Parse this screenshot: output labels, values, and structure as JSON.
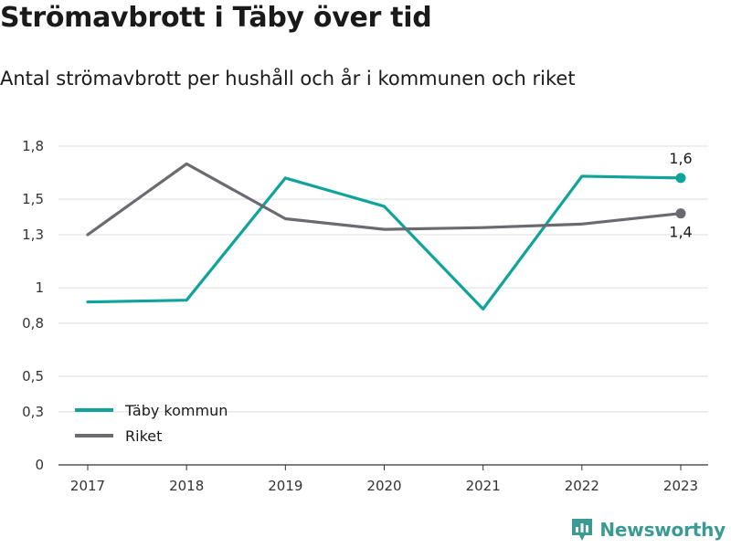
{
  "title": "Strömavbrott i Täby över tid",
  "subtitle": "Antal strömavbrott per hushåll och år i kommunen och riket",
  "brand": {
    "name": "Newsworthy",
    "icon": "newsworthy-logo-icon",
    "color": "#3a9a94"
  },
  "chart_data": {
    "type": "line",
    "title": "Strömavbrott i Täby över tid",
    "subtitle": "Antal strömavbrott per hushåll och år i kommunen och riket",
    "xlabel": "",
    "ylabel": "",
    "x": [
      "2017",
      "2018",
      "2019",
      "2020",
      "2021",
      "2022",
      "2023"
    ],
    "series": [
      {
        "name": "Täby kommun",
        "color": "#0fa39b",
        "values": [
          0.92,
          0.93,
          1.62,
          1.46,
          0.88,
          1.63,
          1.62
        ],
        "end_label": "1,6"
      },
      {
        "name": "Riket",
        "color": "#6b6a70",
        "values": [
          1.3,
          1.7,
          1.39,
          1.33,
          1.34,
          1.36,
          1.42
        ],
        "end_label": "1,4"
      }
    ],
    "ylim": [
      0,
      1.8
    ],
    "yticks": [
      {
        "value": 0,
        "label": "0"
      },
      {
        "value": 0.3,
        "label": "0,3"
      },
      {
        "value": 0.5,
        "label": "0,5"
      },
      {
        "value": 0.8,
        "label": "0,8"
      },
      {
        "value": 1,
        "label": "1"
      },
      {
        "value": 1.3,
        "label": "1,3"
      },
      {
        "value": 1.5,
        "label": "1,5"
      },
      {
        "value": 1.8,
        "label": "1,8"
      }
    ],
    "grid": true,
    "legend_position": "bottom-left"
  }
}
